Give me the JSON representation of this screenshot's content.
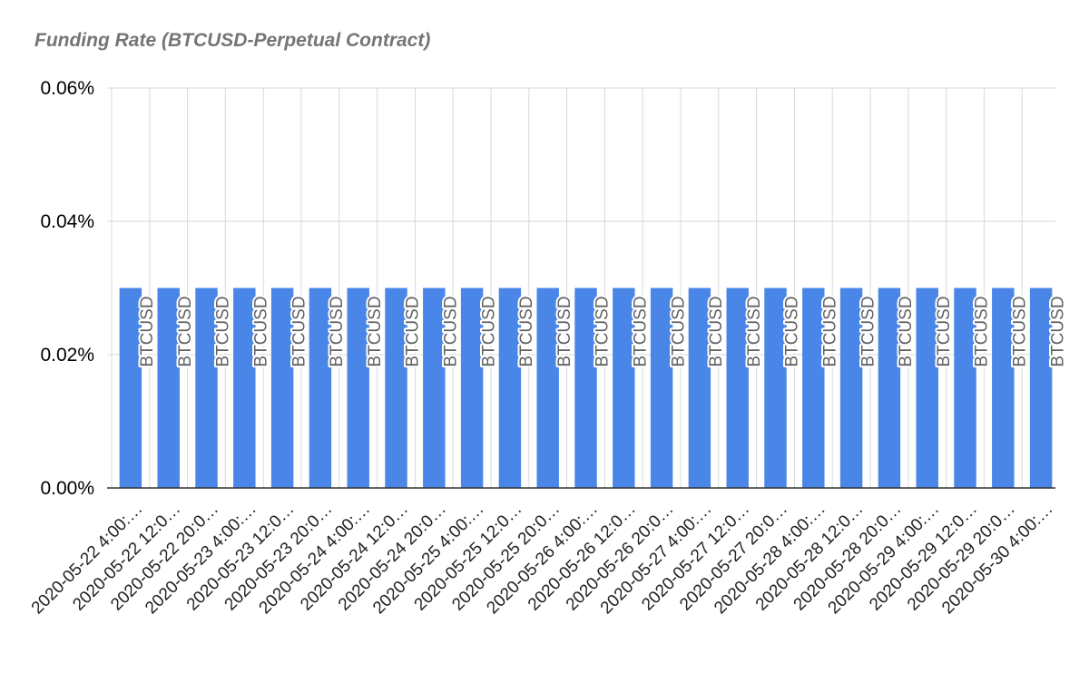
{
  "chart_data": {
    "type": "bar",
    "title": "Funding Rate (BTCUSD-Perpetual Contract)",
    "xlabel": "",
    "ylabel": "",
    "categories": [
      "2020-05-22 4:00:…",
      "2020-05-22 12:0…",
      "2020-05-22 20:0…",
      "2020-05-23 4:00:…",
      "2020-05-23 12:0…",
      "2020-05-23 20:0…",
      "2020-05-24 4:00:…",
      "2020-05-24 12:0…",
      "2020-05-24 20:0…",
      "2020-05-25 4:00:…",
      "2020-05-25 12:0…",
      "2020-05-25 20:0…",
      "2020-05-26 4:00:…",
      "2020-05-26 12:0…",
      "2020-05-26 20:0…",
      "2020-05-27 4:00:…",
      "2020-05-27 12:0…",
      "2020-05-27 20:0…",
      "2020-05-28 4:00:…",
      "2020-05-28 12:0…",
      "2020-05-28 20:0…",
      "2020-05-29 4:00:…",
      "2020-05-29 12:0…",
      "2020-05-29 20:0…",
      "2020-05-30 4:00:…"
    ],
    "series": [
      {
        "name": "BTCUSD",
        "values": [
          0.03,
          0.03,
          0.03,
          0.03,
          0.03,
          0.03,
          0.03,
          0.03,
          0.03,
          0.03,
          0.03,
          0.03,
          0.03,
          0.03,
          0.03,
          0.03,
          0.03,
          0.03,
          0.03,
          0.03,
          0.03,
          0.03,
          0.03,
          0.03,
          0.03
        ],
        "color": "#4a86e8"
      }
    ],
    "unit": "%",
    "ylim": [
      0,
      0.06
    ],
    "yticks": [
      0,
      0.02,
      0.04,
      0.06
    ],
    "ytick_labels": [
      "0.00%",
      "0.02%",
      "0.04%",
      "0.06%"
    ],
    "grid": true,
    "legend": "none",
    "data_labels": "series name, rotated vertical",
    "colors": {
      "bar": "#4a86e8",
      "grid": "#d9d9d9",
      "axis": "#333333",
      "title": "#757575",
      "data_label": "#616161"
    }
  }
}
